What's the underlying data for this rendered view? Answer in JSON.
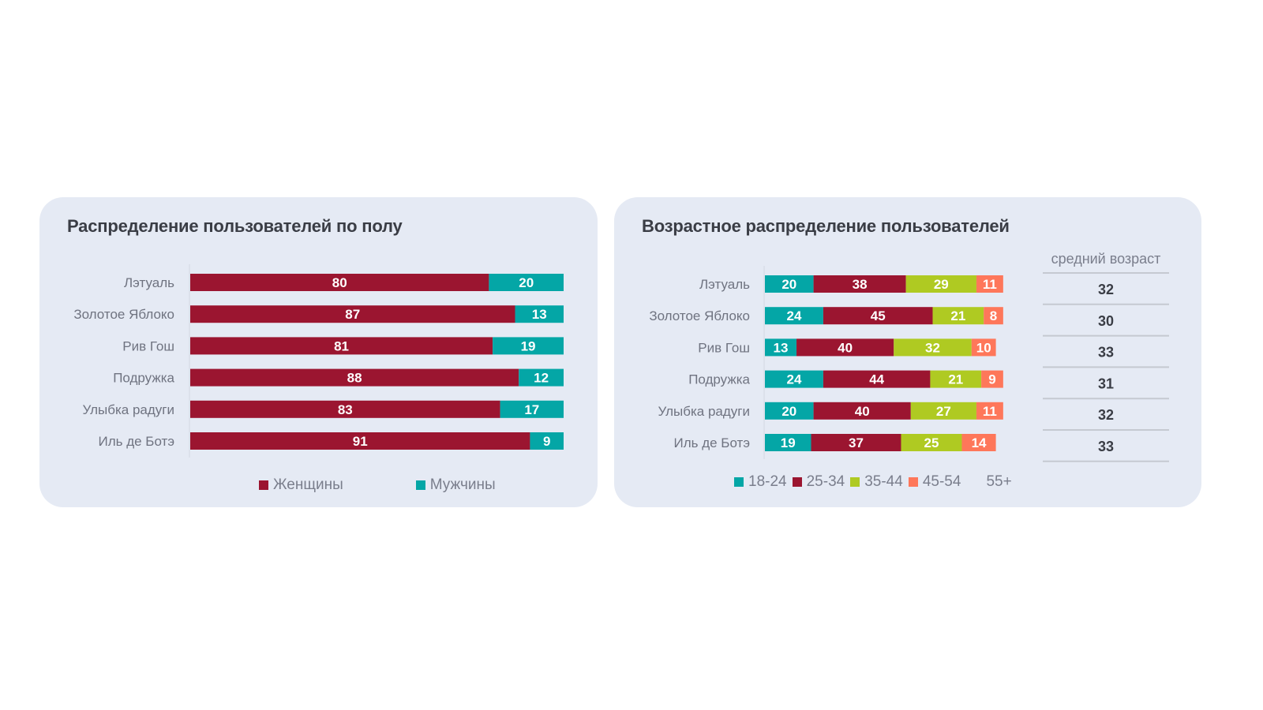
{
  "colors": {
    "women": "#9b1530",
    "men": "#04a6a6",
    "age_18_24": "#04a6a6",
    "age_25_34": "#9b1530",
    "age_35_44": "#afca22",
    "age_45_54": "#fe775a",
    "age_55_plus": "#e5eaf4"
  },
  "chart_data": [
    {
      "type": "bar",
      "orientation": "horizontal",
      "stacked": true,
      "title": "Распределение пользователей по полу",
      "categories": [
        "Лэтуаль",
        "Золотое Яблоко",
        "Рив Гош",
        "Подружка",
        "Улыбка радуги",
        "Иль де Ботэ"
      ],
      "series": [
        {
          "name": "Женщины",
          "values": [
            80,
            87,
            81,
            88,
            83,
            91
          ]
        },
        {
          "name": "Мужчины",
          "values": [
            20,
            13,
            19,
            12,
            17,
            9
          ]
        }
      ],
      "xlim": [
        0,
        100
      ],
      "legend": "bottom",
      "grid": false
    },
    {
      "type": "bar",
      "orientation": "horizontal",
      "stacked": true,
      "title": "Возрастное распределение пользователей",
      "categories": [
        "Лэтуаль",
        "Золотое Яблоко",
        "Рив Гош",
        "Подружка",
        "Улыбка радуги",
        "Иль де Ботэ"
      ],
      "series": [
        {
          "name": "18-24",
          "values": [
            20,
            24,
            13,
            24,
            20,
            19
          ]
        },
        {
          "name": "25-34",
          "values": [
            38,
            45,
            40,
            44,
            40,
            37
          ]
        },
        {
          "name": "35-44",
          "values": [
            29,
            21,
            32,
            21,
            27,
            25
          ]
        },
        {
          "name": "45-54",
          "values": [
            11,
            8,
            10,
            9,
            11,
            14
          ]
        },
        {
          "name": "55+",
          "values": [
            null,
            null,
            null,
            null,
            null,
            null
          ]
        }
      ],
      "xlim": [
        0,
        100
      ],
      "legend": "bottom",
      "grid": false,
      "side_table": {
        "header": "средний возраст",
        "values": [
          32,
          30,
          33,
          31,
          32,
          33
        ]
      }
    }
  ]
}
